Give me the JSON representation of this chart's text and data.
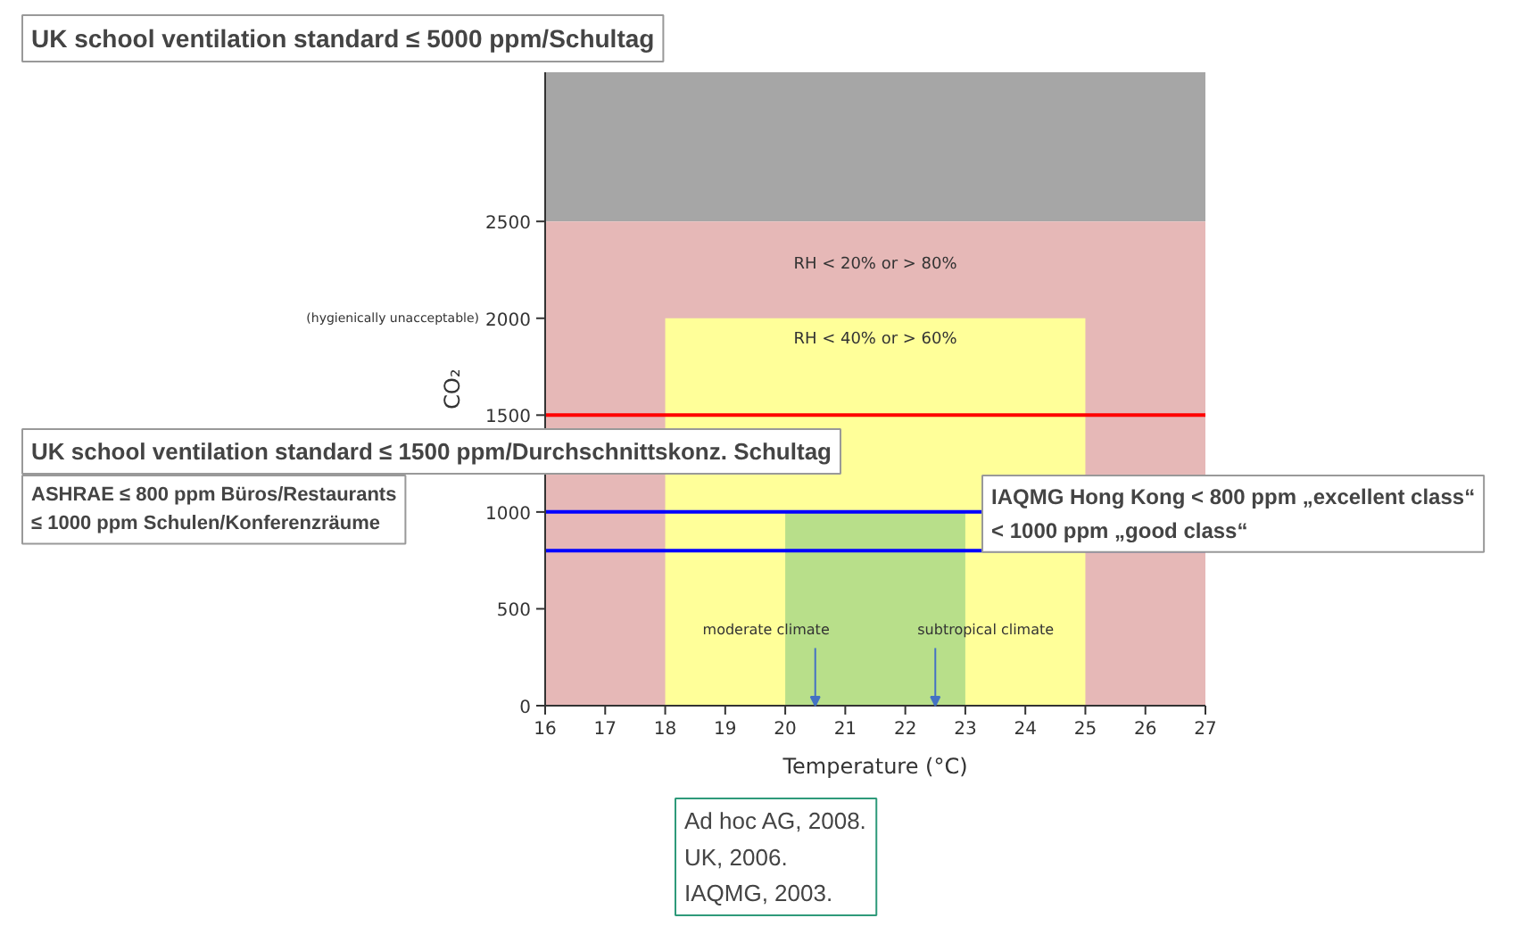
{
  "chart_data": {
    "type": "area",
    "xlabel": "Temperature (°C)",
    "ylabel": "CO₂",
    "xlim": [
      16,
      27
    ],
    "ylim": [
      0,
      3270
    ],
    "xticks": [
      16,
      17,
      18,
      19,
      20,
      21,
      22,
      23,
      24,
      25,
      26,
      27
    ],
    "yticks": [
      0,
      500,
      1000,
      1500,
      2000,
      2500
    ],
    "series": [
      {
        "color": "#ffff99",
        "x": [
          18,
          25
        ],
        "values": [
          2000,
          2000
        ]
      },
      {
        "color": "#b8df8a",
        "x": [
          20,
          23
        ],
        "values": [
          1000,
          1000
        ]
      }
    ],
    "bands": [
      {
        "axis": "y",
        "from": 2500,
        "to": 3270,
        "color": "#a6a6a6"
      },
      {
        "axis": "y",
        "from": 0,
        "to": 2500,
        "color": "#e6b8b7"
      }
    ],
    "ref_lines": [
      {
        "axis": "y",
        "value": 1500,
        "color": "#ff0000"
      },
      {
        "axis": "y",
        "value": 1000,
        "color": "#0000ff"
      },
      {
        "axis": "y",
        "value": 800,
        "color": "#0000ff"
      }
    ],
    "annotations": [
      "UK school ventilation standard ≤ 5000 ppm/Schultag",
      "UK school ventilation standard ≤ 1500 ppm/Durchschnittskonz. Schultag",
      "ASHRAE ≤ 800 ppm Büros/Restaurants\n≤ 1000 ppm Schulen/Konferenzräume",
      "IAQMG Hong Kong < 800 ppm „excellent class“\n< 1000 ppm „good class“",
      "Ad hoc AG, 2008.\nUK, 2006.\nIAQMG, 2003.",
      "(hygienically unacceptable)",
      "RH < 20% or > 80%",
      "RH < 40% or > 60%",
      {
        "text": "moderate climate",
        "x": 20.5,
        "y": 0
      },
      {
        "text": "subtropical climate",
        "x": 22.5,
        "y": 0
      }
    ]
  }
}
